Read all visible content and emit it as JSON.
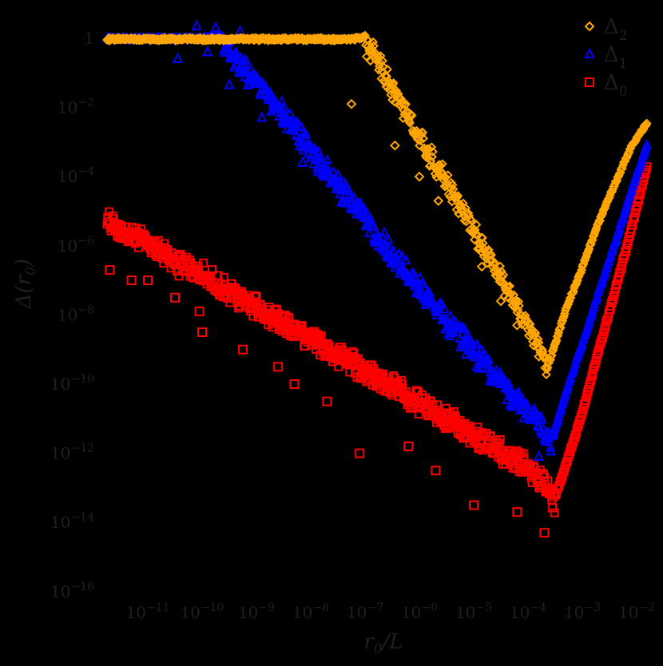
{
  "chart_data": {
    "type": "scatter",
    "title": "",
    "xlabel": "r_0/L",
    "ylabel": "Δ(r_0)",
    "xscale": "log",
    "yscale": "log",
    "xlim": [
      1.5e-12,
      0.02
    ],
    "ylim": [
      1e-16,
      3.0
    ],
    "grid": false,
    "legend_position": "upper right",
    "background": "#000000",
    "text_color": "#1f1f1f",
    "x_ticks": [
      {
        "base": "10",
        "exp": "−11",
        "value": 1e-11
      },
      {
        "base": "10",
        "exp": "−10",
        "value": 1e-10
      },
      {
        "base": "10",
        "exp": "−9",
        "value": 1e-09
      },
      {
        "base": "10",
        "exp": "−8",
        "value": 1e-08
      },
      {
        "base": "10",
        "exp": "−7",
        "value": 1e-07
      },
      {
        "base": "10",
        "exp": "−6",
        "value": 1e-06
      },
      {
        "base": "10",
        "exp": "−5",
        "value": 1e-05
      },
      {
        "base": "10",
        "exp": "−4",
        "value": 0.0001
      },
      {
        "base": "10",
        "exp": "−3",
        "value": 0.001
      },
      {
        "base": "10",
        "exp": "−2",
        "value": 0.01
      }
    ],
    "y_ticks": [
      {
        "base": "1",
        "exp": "",
        "value": 1
      },
      {
        "base": "10",
        "exp": "−2",
        "value": 0.01
      },
      {
        "base": "10",
        "exp": "−4",
        "value": 0.0001
      },
      {
        "base": "10",
        "exp": "−6",
        "value": 1e-06
      },
      {
        "base": "10",
        "exp": "−8",
        "value": 1e-08
      },
      {
        "base": "10",
        "exp": "−10",
        "value": 1e-10
      },
      {
        "base": "10",
        "exp": "−12",
        "value": 1e-12
      },
      {
        "base": "10",
        "exp": "−14",
        "value": 1e-14
      },
      {
        "base": "10",
        "exp": "−16",
        "value": 1e-16
      }
    ],
    "series": [
      {
        "name": "Δ2",
        "label_main": "Δ",
        "label_sub": "2",
        "marker": "diamond",
        "color": "#FFA500",
        "description": "Flat at ~1 for r0/L up to ~1e-7, then decreases as a power law to a minimum ~4e-10 near r0/L≈2.5e-4, then rises steeply to ~4e-3 at r0/L≈1.6e-2",
        "log_x": [
          -11.75,
          -11.0,
          -10.0,
          -9.0,
          -8.0,
          -7.3,
          -7.0,
          -6.8,
          -6.5,
          -6.2,
          -6.0,
          -5.7,
          -5.4,
          -5.0,
          -4.7,
          -4.4,
          -4.1,
          -3.8,
          -3.6,
          -3.3,
          -3.0,
          -2.7,
          -2.4,
          -2.1,
          -1.8
        ],
        "log_y": [
          0.0,
          0.0,
          0.0,
          0.0,
          0.0,
          0.0,
          0.05,
          -0.3,
          -1.2,
          -2.0,
          -2.6,
          -3.4,
          -4.2,
          -5.3,
          -6.2,
          -7.0,
          -7.8,
          -8.7,
          -9.3,
          -7.8,
          -6.6,
          -5.3,
          -4.2,
          -3.1,
          -2.4
        ],
        "scatter_outliers": [
          [
            -7.25,
            -1.9
          ],
          [
            -6.45,
            -3.1
          ],
          [
            -6.6,
            -1.4
          ],
          [
            -6.0,
            -4.0
          ],
          [
            -5.65,
            -4.7
          ],
          [
            -4.85,
            -6.6
          ],
          [
            -4.5,
            -7.6
          ],
          [
            -4.2,
            -8.3
          ],
          [
            -3.8,
            -9.2
          ]
        ]
      },
      {
        "name": "Δ1",
        "label_main": "Δ",
        "label_sub": "1",
        "marker": "triangle",
        "color": "#0000FF",
        "description": "Flat at ~1 for r0/L up to ~3e-10, then decreases as a power law to a minimum ~3e-12 near r0/L≈3e-4, then rises steeply to ~1e-3 at r0/L≈1.6e-2",
        "log_x": [
          -11.75,
          -11.0,
          -10.5,
          -10.0,
          -9.6,
          -9.3,
          -9.0,
          -8.5,
          -8.0,
          -7.5,
          -7.0,
          -6.5,
          -6.0,
          -5.5,
          -5.0,
          -4.5,
          -4.0,
          -3.75,
          -3.55,
          -3.3,
          -3.0,
          -2.7,
          -2.4,
          -2.1,
          -1.8
        ],
        "log_y": [
          0.0,
          0.0,
          0.0,
          0.0,
          0.05,
          -0.5,
          -1.1,
          -2.0,
          -3.0,
          -4.0,
          -5.0,
          -6.0,
          -7.0,
          -7.9,
          -8.8,
          -9.7,
          -10.6,
          -11.0,
          -11.5,
          -10.2,
          -8.8,
          -7.3,
          -5.9,
          -4.4,
          -3.0
        ],
        "scatter_outliers": [
          [
            -10.1,
            0.35
          ],
          [
            -9.75,
            0.3
          ],
          [
            -9.3,
            0.2
          ],
          [
            -10.45,
            -0.6
          ],
          [
            -9.9,
            -0.4
          ],
          [
            -9.5,
            -1.35
          ],
          [
            -8.9,
            -2.3
          ],
          [
            -8.15,
            -3.6
          ],
          [
            -7.75,
            -3.95
          ],
          [
            -7.4,
            -4.4
          ],
          [
            -5.15,
            -8.8
          ],
          [
            -4.4,
            -10.1
          ],
          [
            -3.8,
            -12.1
          ]
        ]
      },
      {
        "name": "Δ0",
        "label_main": "Δ",
        "label_sub": "0",
        "marker": "square",
        "color": "#FF0000",
        "description": "Decreases as a power law from ~1e-5 at r0/L≈1.7e-12 to a minimum ~5e-14 near r0/L≈3.5e-4, then rises steeply to ~3e-4 at r0/L≈1.6e-2",
        "log_x": [
          -11.75,
          -11.5,
          -11.0,
          -10.5,
          -10.0,
          -9.5,
          -9.0,
          -8.5,
          -8.0,
          -7.5,
          -7.0,
          -6.5,
          -6.0,
          -5.5,
          -5.0,
          -4.5,
          -4.0,
          -3.7,
          -3.5,
          -3.3,
          -3.0,
          -2.7,
          -2.4,
          -2.1,
          -1.8
        ],
        "log_y": [
          -5.0,
          -5.3,
          -5.7,
          -6.2,
          -6.6,
          -7.1,
          -7.5,
          -8.0,
          -8.4,
          -8.9,
          -9.4,
          -9.8,
          -10.3,
          -10.8,
          -11.2,
          -11.7,
          -12.2,
          -12.6,
          -13.2,
          -12.3,
          -10.8,
          -9.0,
          -7.3,
          -5.5,
          -3.6
        ],
        "scatter_outliers": [
          [
            -11.7,
            -6.7
          ],
          [
            -11.3,
            -7.0
          ],
          [
            -11.0,
            -7.0
          ],
          [
            -10.5,
            -7.5
          ],
          [
            -10.05,
            -7.9
          ],
          [
            -10.0,
            -8.5
          ],
          [
            -9.25,
            -9.0
          ],
          [
            -8.6,
            -9.5
          ],
          [
            -8.3,
            -10.0
          ],
          [
            -7.7,
            -10.5
          ],
          [
            -7.1,
            -12.0
          ],
          [
            -6.2,
            -11.8
          ],
          [
            -5.7,
            -12.5
          ],
          [
            -5.0,
            -13.5
          ],
          [
            -4.2,
            -13.7
          ],
          [
            -3.7,
            -14.3
          ]
        ]
      }
    ]
  }
}
